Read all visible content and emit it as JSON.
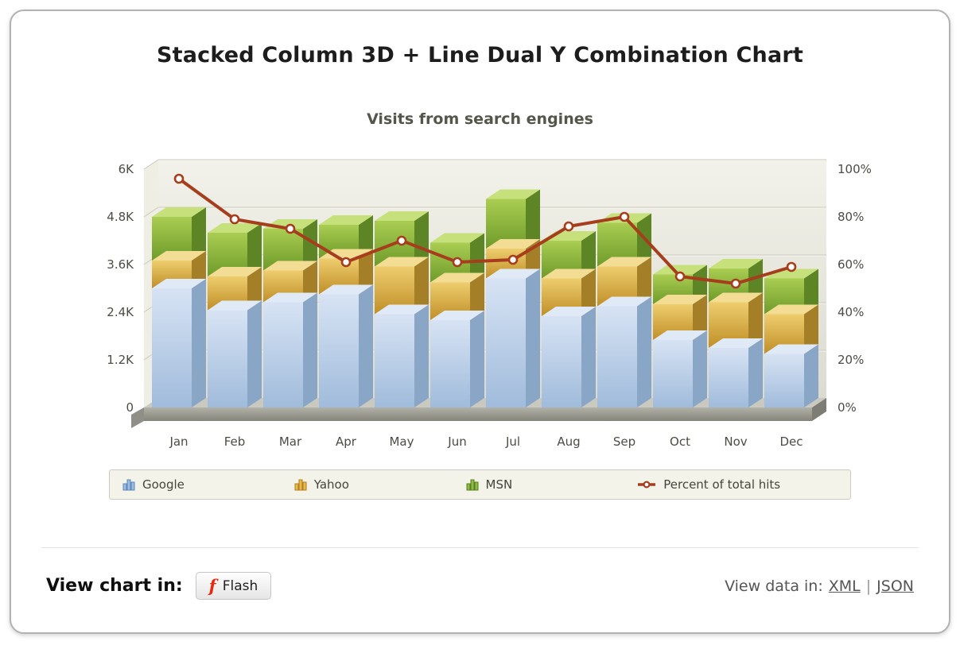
{
  "page": {
    "title": "Stacked Column 3D + Line Dual Y Combination Chart"
  },
  "chart_data": {
    "type": "combination-stacked-column-3d-line-dual-y",
    "title": "Visits from search engines",
    "categories": [
      "Jan",
      "Feb",
      "Mar",
      "Apr",
      "May",
      "Jun",
      "Jul",
      "Aug",
      "Sep",
      "Oct",
      "Nov",
      "Dec"
    ],
    "series": [
      {
        "name": "Google",
        "type": "column",
        "axis": "left",
        "color": "#aec7e3",
        "values": [
          3000,
          2450,
          2650,
          2850,
          2350,
          2200,
          3250,
          2300,
          2550,
          1700,
          1500,
          1350
        ]
      },
      {
        "name": "Yahoo",
        "type": "column",
        "axis": "left",
        "color": "#dfb04a",
        "values": [
          700,
          850,
          800,
          900,
          1200,
          950,
          750,
          950,
          1000,
          900,
          1150,
          1000
        ]
      },
      {
        "name": "MSN",
        "type": "column",
        "axis": "left",
        "color": "#8ab23f",
        "values": [
          1100,
          1100,
          1050,
          850,
          1150,
          1000,
          1250,
          950,
          1100,
          750,
          850,
          900
        ]
      },
      {
        "name": "Percent of total hits",
        "type": "line",
        "axis": "right",
        "color": "#a63e1e",
        "values": [
          96,
          79,
          75,
          61,
          70,
          61,
          62,
          76,
          80,
          55,
          52,
          59
        ]
      }
    ],
    "left_axis": {
      "min": 0,
      "max": 6000,
      "ticks": [
        "0",
        "1.2K",
        "2.4K",
        "3.6K",
        "4.8K",
        "6K"
      ]
    },
    "right_axis": {
      "min": 0,
      "max": 100,
      "ticks": [
        "0%",
        "20%",
        "40%",
        "60%",
        "80%",
        "100%"
      ]
    },
    "legend_position": "bottom",
    "grid": true
  },
  "legend": {
    "items": [
      {
        "label": "Google",
        "icon": "columns",
        "color": "#9dbde0",
        "stroke": "#5d87b8"
      },
      {
        "label": "Yahoo",
        "icon": "columns",
        "color": "#e8b84a",
        "stroke": "#b07e1e"
      },
      {
        "label": "MSN",
        "icon": "columns",
        "color": "#8fba45",
        "stroke": "#567f1f"
      },
      {
        "label": "Percent of total hits",
        "icon": "line",
        "color": "#a63e1e",
        "stroke": "#a63e1e"
      }
    ]
  },
  "footer": {
    "view_chart_label": "View chart in:",
    "flash_button": "Flash",
    "view_data_label": "View data in:",
    "xml_label": "XML",
    "separator": "|",
    "json_label": "JSON"
  },
  "icons": {
    "flash_glyph": "f"
  }
}
